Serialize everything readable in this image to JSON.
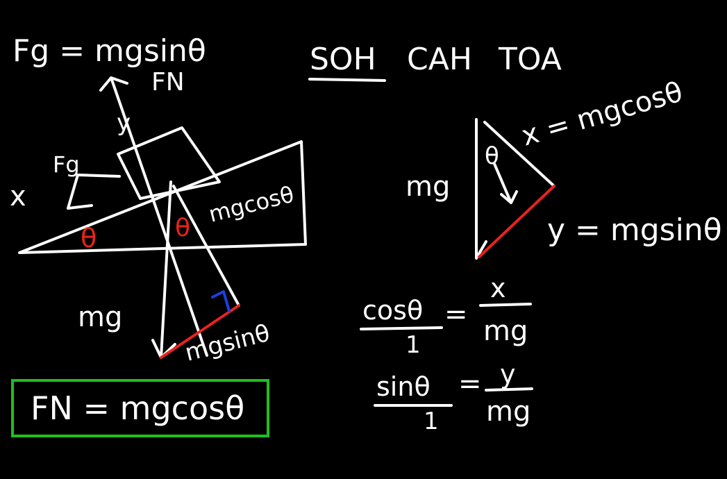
{
  "colors": {
    "background": "#000000",
    "ink": "#ffffff",
    "highlight": "#e8231c",
    "right_angle": "#1f3fe0",
    "answer_box": "#1fbf1f"
  },
  "left_diagram": {
    "fg_equation": "Fg = mgsinθ",
    "fn_label": "FN",
    "y_axis_label": "y",
    "x_axis_label": "x",
    "fg_label": "Fg",
    "incline_angle": "θ",
    "inner_angle": "θ",
    "mgcos_label": "mgcosθ",
    "mg_label": "mg",
    "mgsin_label": "mgsinθ"
  },
  "answer": {
    "text": "FN = mgcosθ"
  },
  "mnemonic": {
    "soh": "SOH",
    "cah": "CAH",
    "toa": "TOA"
  },
  "right_triangle": {
    "angle": "θ",
    "x_equation": "x = mgcosθ",
    "mg_label": "mg",
    "y_equation": "y = mgsinθ"
  },
  "ratios": {
    "cos_numerator": "cosθ",
    "cos_denominator": "1",
    "cos_equals": "=",
    "cos_rhs_numerator": "x",
    "cos_rhs_denominator": "mg",
    "sin_numerator": "sinθ",
    "sin_denominator": "1",
    "sin_equals": "=",
    "sin_rhs_numerator": "y",
    "sin_rhs_denominator": "mg"
  }
}
